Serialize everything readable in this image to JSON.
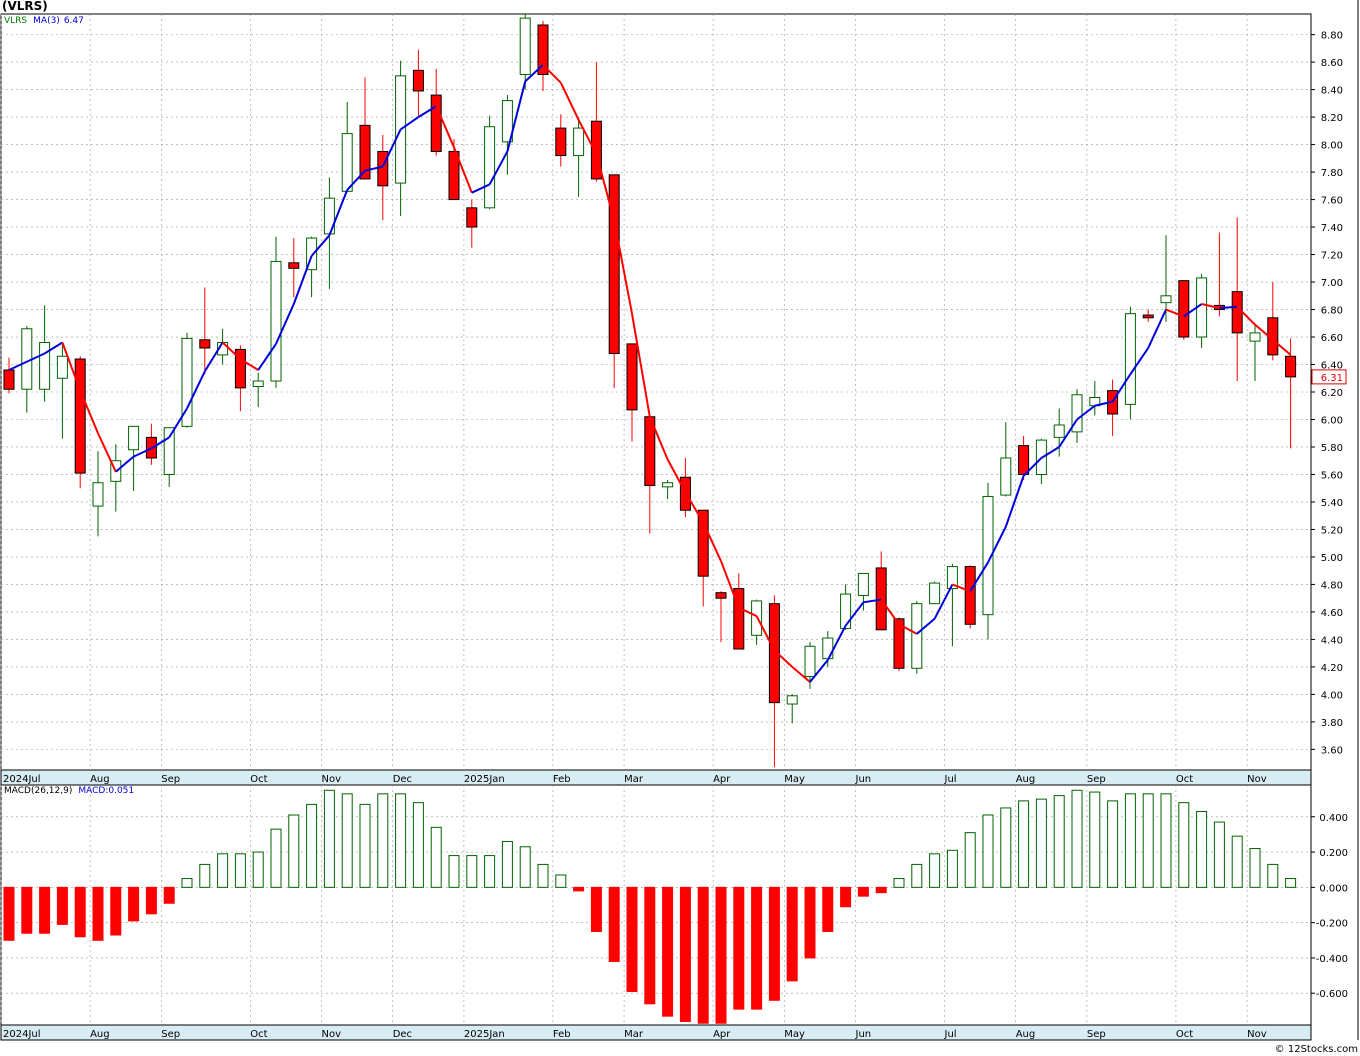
{
  "header": {
    "title": "(VLRS)"
  },
  "price_legend": {
    "ticker": "VLRS",
    "ma_label": "MA(3)",
    "ma_value": "6.47",
    "ticker_color": "#008000",
    "ma_color": "#0000cc"
  },
  "macd_legend": {
    "label": "MACD(26,12,9)",
    "value_label": "MACD:0.051"
  },
  "last_price": {
    "label": "6.31",
    "value": 6.31,
    "color": "#e00000"
  },
  "footer": {
    "credit": "© 12Stocks.com"
  },
  "colors": {
    "up_candle": "#006400",
    "down_candle": "#ff0000",
    "ma_up": "#0000dd",
    "ma_down": "#ff0000",
    "macd_pos": "#006400",
    "macd_neg": "#ff0000",
    "grid": "#999999"
  },
  "chart_data": [
    {
      "type": "candlestick",
      "title": "(VLRS)",
      "ylim": [
        3.45,
        8.95
      ],
      "y_ticks": [
        "3.60",
        "3.80",
        "4.00",
        "4.20",
        "4.40",
        "4.60",
        "4.80",
        "5.00",
        "5.20",
        "5.40",
        "5.60",
        "5.80",
        "6.00",
        "6.20",
        "6.40",
        "6.60",
        "6.80",
        "7.00",
        "7.20",
        "7.40",
        "7.60",
        "7.80",
        "8.00",
        "8.20",
        "8.40",
        "8.60",
        "8.80"
      ],
      "x_tick_labels": [
        "2024Jul",
        "Aug",
        "Sep",
        "Oct",
        "Nov",
        "Dec",
        "2025Jan",
        "Feb",
        "Mar",
        "Apr",
        "May",
        "Jun",
        "Jul",
        "Aug",
        "Sep",
        "Oct",
        "Nov"
      ],
      "x_tick_week_index": [
        0,
        5,
        9,
        14,
        18,
        22,
        26,
        31,
        35,
        40,
        44,
        48,
        53,
        57,
        61,
        66,
        70
      ],
      "grid": true,
      "candles": [
        {
          "o": 6.36,
          "h": 6.45,
          "l": 6.19,
          "c": 6.22
        },
        {
          "o": 6.22,
          "h": 6.68,
          "l": 6.05,
          "c": 6.66
        },
        {
          "o": 6.22,
          "h": 6.83,
          "l": 6.13,
          "c": 6.56
        },
        {
          "o": 6.3,
          "h": 6.56,
          "l": 5.86,
          "c": 6.46
        },
        {
          "o": 6.44,
          "h": 6.46,
          "l": 5.5,
          "c": 5.61
        },
        {
          "o": 5.37,
          "h": 5.77,
          "l": 5.15,
          "c": 5.54
        },
        {
          "o": 5.55,
          "h": 5.82,
          "l": 5.33,
          "c": 5.7
        },
        {
          "o": 5.78,
          "h": 5.95,
          "l": 5.48,
          "c": 5.95
        },
        {
          "o": 5.87,
          "h": 5.97,
          "l": 5.67,
          "c": 5.72
        },
        {
          "o": 5.6,
          "h": 5.93,
          "l": 5.51,
          "c": 5.94
        },
        {
          "o": 5.95,
          "h": 6.63,
          "l": 5.94,
          "c": 6.59
        },
        {
          "o": 6.58,
          "h": 6.96,
          "l": 6.33,
          "c": 6.52
        },
        {
          "o": 6.47,
          "h": 6.66,
          "l": 6.4,
          "c": 6.56
        },
        {
          "o": 6.51,
          "h": 6.54,
          "l": 6.06,
          "c": 6.23
        },
        {
          "o": 6.24,
          "h": 6.34,
          "l": 6.09,
          "c": 6.28
        },
        {
          "o": 6.28,
          "h": 7.33,
          "l": 6.23,
          "c": 7.15
        },
        {
          "o": 7.14,
          "h": 7.32,
          "l": 6.89,
          "c": 7.1
        },
        {
          "o": 7.09,
          "h": 7.33,
          "l": 6.89,
          "c": 7.32
        },
        {
          "o": 7.35,
          "h": 7.76,
          "l": 6.95,
          "c": 7.61
        },
        {
          "o": 7.66,
          "h": 8.31,
          "l": 7.65,
          "c": 8.08
        },
        {
          "o": 8.14,
          "h": 8.49,
          "l": 7.8,
          "c": 7.75
        },
        {
          "o": 7.95,
          "h": 8.07,
          "l": 7.45,
          "c": 7.7
        },
        {
          "o": 7.72,
          "h": 8.61,
          "l": 7.48,
          "c": 8.5
        },
        {
          "o": 8.54,
          "h": 8.69,
          "l": 8.2,
          "c": 8.39
        },
        {
          "o": 8.36,
          "h": 8.55,
          "l": 7.92,
          "c": 7.95
        },
        {
          "o": 7.95,
          "h": 8.04,
          "l": 7.61,
          "c": 7.6
        },
        {
          "o": 7.54,
          "h": 7.6,
          "l": 7.25,
          "c": 7.4
        },
        {
          "o": 7.54,
          "h": 8.21,
          "l": 7.53,
          "c": 8.13
        },
        {
          "o": 8.02,
          "h": 8.36,
          "l": 7.78,
          "c": 8.32
        },
        {
          "o": 8.51,
          "h": 8.95,
          "l": 8.4,
          "c": 8.92
        },
        {
          "o": 8.87,
          "h": 8.9,
          "l": 8.39,
          "c": 8.51
        },
        {
          "o": 8.12,
          "h": 8.22,
          "l": 7.84,
          "c": 7.92
        },
        {
          "o": 7.92,
          "h": 8.2,
          "l": 7.62,
          "c": 8.12
        },
        {
          "o": 8.17,
          "h": 8.6,
          "l": 7.73,
          "c": 7.75
        },
        {
          "o": 7.78,
          "h": 7.78,
          "l": 6.23,
          "c": 6.48
        },
        {
          "o": 6.55,
          "h": 6.55,
          "l": 5.84,
          "c": 6.07
        },
        {
          "o": 6.02,
          "h": 6.02,
          "l": 5.17,
          "c": 5.52
        },
        {
          "o": 5.51,
          "h": 5.56,
          "l": 5.42,
          "c": 5.54
        },
        {
          "o": 5.58,
          "h": 5.72,
          "l": 5.29,
          "c": 5.34
        },
        {
          "o": 5.34,
          "h": 5.34,
          "l": 4.64,
          "c": 4.86
        },
        {
          "o": 4.74,
          "h": 4.75,
          "l": 4.38,
          "c": 4.7
        },
        {
          "o": 4.77,
          "h": 4.88,
          "l": 4.33,
          "c": 4.33
        },
        {
          "o": 4.43,
          "h": 4.69,
          "l": 4.36,
          "c": 4.68
        },
        {
          "o": 4.66,
          "h": 4.72,
          "l": 3.47,
          "c": 3.94
        },
        {
          "o": 3.93,
          "h": 4.0,
          "l": 3.79,
          "c": 3.99
        },
        {
          "o": 4.13,
          "h": 4.38,
          "l": 4.04,
          "c": 4.35
        },
        {
          "o": 4.26,
          "h": 4.46,
          "l": 4.2,
          "c": 4.41
        },
        {
          "o": 4.48,
          "h": 4.8,
          "l": 4.47,
          "c": 4.73
        },
        {
          "o": 4.72,
          "h": 4.88,
          "l": 4.61,
          "c": 4.88
        },
        {
          "o": 4.92,
          "h": 5.04,
          "l": 4.49,
          "c": 4.47
        },
        {
          "o": 4.55,
          "h": 4.56,
          "l": 4.17,
          "c": 4.19
        },
        {
          "o": 4.19,
          "h": 4.68,
          "l": 4.15,
          "c": 4.66
        },
        {
          "o": 4.66,
          "h": 4.82,
          "l": 4.66,
          "c": 4.81
        },
        {
          "o": 4.77,
          "h": 4.95,
          "l": 4.35,
          "c": 4.93
        },
        {
          "o": 4.93,
          "h": 4.94,
          "l": 4.48,
          "c": 4.51
        },
        {
          "o": 4.58,
          "h": 5.54,
          "l": 4.4,
          "c": 5.44
        },
        {
          "o": 5.45,
          "h": 5.98,
          "l": 5.44,
          "c": 5.72
        },
        {
          "o": 5.81,
          "h": 5.88,
          "l": 5.56,
          "c": 5.6
        },
        {
          "o": 5.6,
          "h": 5.86,
          "l": 5.53,
          "c": 5.85
        },
        {
          "o": 5.87,
          "h": 6.08,
          "l": 5.73,
          "c": 5.96
        },
        {
          "o": 5.91,
          "h": 6.22,
          "l": 5.83,
          "c": 6.18
        },
        {
          "o": 6.1,
          "h": 6.28,
          "l": 6.03,
          "c": 6.16
        },
        {
          "o": 6.21,
          "h": 6.29,
          "l": 5.88,
          "c": 6.04
        },
        {
          "o": 6.11,
          "h": 6.82,
          "l": 6.0,
          "c": 6.77
        },
        {
          "o": 6.76,
          "h": 6.8,
          "l": 6.71,
          "c": 6.74
        },
        {
          "o": 6.85,
          "h": 7.34,
          "l": 6.71,
          "c": 6.9
        },
        {
          "o": 7.01,
          "h": 7.01,
          "l": 6.58,
          "c": 6.6
        },
        {
          "o": 6.6,
          "h": 7.06,
          "l": 6.52,
          "c": 7.03
        },
        {
          "o": 6.83,
          "h": 7.36,
          "l": 6.75,
          "c": 6.8
        },
        {
          "o": 6.93,
          "h": 7.47,
          "l": 6.28,
          "c": 6.63
        },
        {
          "o": 6.57,
          "h": 6.69,
          "l": 6.28,
          "c": 6.63
        },
        {
          "o": 6.74,
          "h": 7.0,
          "l": 6.43,
          "c": 6.47
        },
        {
          "o": 6.46,
          "h": 6.59,
          "l": 5.79,
          "c": 6.31
        }
      ],
      "ma_series": {
        "name": "MA(3)",
        "values": [
          6.36,
          6.42,
          6.48,
          6.56,
          6.21,
          5.9,
          5.62,
          5.73,
          5.79,
          5.87,
          6.08,
          6.35,
          6.56,
          6.44,
          6.36,
          6.55,
          6.84,
          7.19,
          7.34,
          7.67,
          7.81,
          7.84,
          8.11,
          8.2,
          8.28,
          7.98,
          7.65,
          7.71,
          7.95,
          8.46,
          8.58,
          8.45,
          8.18,
          7.93,
          7.45,
          6.77,
          6.02,
          5.71,
          5.47,
          5.25,
          4.97,
          4.63,
          4.57,
          4.32,
          4.2,
          4.09,
          4.25,
          4.5,
          4.67,
          4.69,
          4.51,
          4.44,
          4.55,
          4.8,
          4.75,
          4.96,
          5.22,
          5.59,
          5.72,
          5.8,
          6.0,
          6.1,
          6.13,
          6.33,
          6.52,
          6.8,
          6.75,
          6.84,
          6.81,
          6.82,
          6.69,
          6.58,
          6.47
        ]
      },
      "ma_trend_color_rule": "blue when rising, red when falling"
    },
    {
      "type": "bar",
      "title": "MACD(26,12,9)",
      "ylim": [
        -0.78,
        0.58
      ],
      "y_ticks": [
        "-0.600",
        "-0.400",
        "-0.200",
        "0.000",
        "0.200",
        "0.400"
      ],
      "x_tick_labels": [
        "2024Jul",
        "Aug",
        "Sep",
        "Oct",
        "Nov",
        "Dec",
        "2025Jan",
        "Feb",
        "Mar",
        "Apr",
        "May",
        "Jun",
        "Jul",
        "Aug",
        "Sep",
        "Oct",
        "Nov"
      ],
      "series": [
        {
          "name": "MACD",
          "values": [
            -0.3,
            -0.26,
            -0.26,
            -0.21,
            -0.28,
            -0.3,
            -0.27,
            -0.19,
            -0.15,
            -0.09,
            0.05,
            0.13,
            0.19,
            0.19,
            0.2,
            0.33,
            0.41,
            0.47,
            0.55,
            0.53,
            0.47,
            0.53,
            0.53,
            0.48,
            0.34,
            0.18,
            0.18,
            0.18,
            0.26,
            0.23,
            0.13,
            0.07,
            -0.02,
            -0.25,
            -0.42,
            -0.59,
            -0.66,
            -0.73,
            -0.76,
            -0.77,
            -0.77,
            -0.69,
            -0.69,
            -0.64,
            -0.53,
            -0.4,
            -0.25,
            -0.11,
            -0.05,
            -0.03,
            0.05,
            0.13,
            0.19,
            0.21,
            0.31,
            0.41,
            0.45,
            0.49,
            0.5,
            0.52,
            0.55,
            0.54,
            0.49,
            0.53,
            0.53,
            0.53,
            0.48,
            0.43,
            0.37,
            0.29,
            0.22,
            0.13,
            0.05
          ]
        }
      ]
    }
  ]
}
